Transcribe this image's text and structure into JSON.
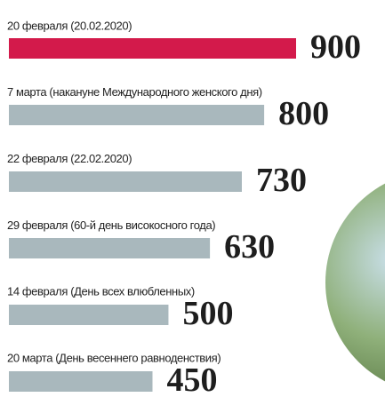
{
  "chart_data": {
    "type": "bar",
    "orientation": "horizontal",
    "categories": [
      "20 февраля (20.02.2020)",
      "7 марта (накануне Международного женского дня)",
      "22 февраля (22.02.2020)",
      "29 февраля (60-й день високосного года)",
      "14 февраля (День всех влюбленных)",
      "20 марта (День весеннего равноденствия)"
    ],
    "values": [
      900,
      800,
      730,
      630,
      500,
      450
    ],
    "colors": [
      "#d31a4b",
      "#a9b8bd",
      "#a9b8bd",
      "#a9b8bd",
      "#a9b8bd",
      "#a9b8bd"
    ]
  }
}
